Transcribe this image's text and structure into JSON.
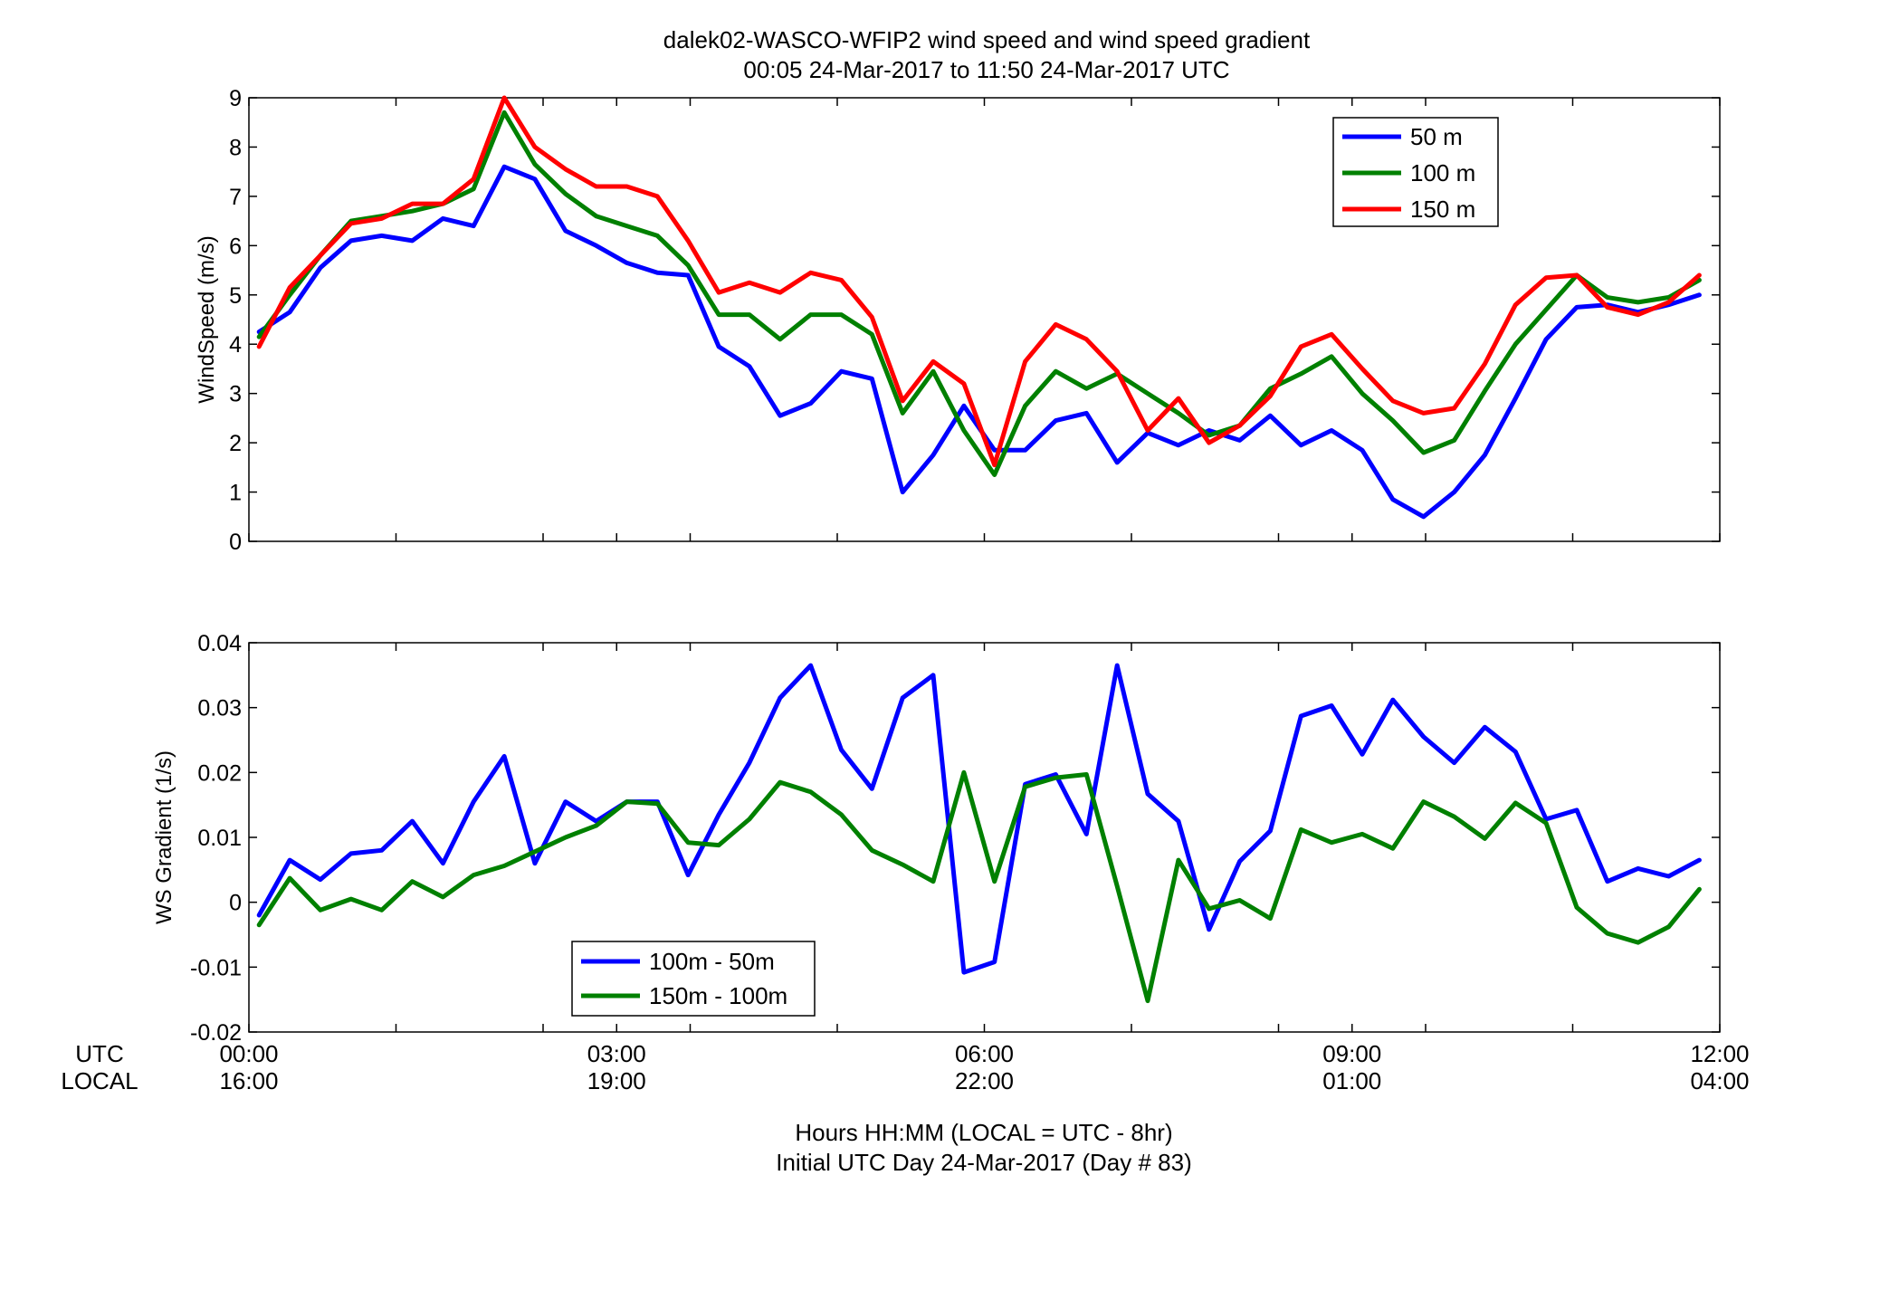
{
  "title": {
    "line1": "dalek02-WASCO-WFIP2  wind speed and wind speed gradient",
    "line2": "00:05 24-Mar-2017 to 11:50 24-Mar-2017  UTC"
  },
  "footer": {
    "line1": "Hours HH:MM  (LOCAL = UTC - 8hr)",
    "line2": "Initial UTC Day 24-Mar-2017 (Day # 83)"
  },
  "time_axis": {
    "row1_label": "UTC",
    "row2_label": "LOCAL",
    "utc_ticks": [
      "00:00",
      "03:00",
      "06:00",
      "09:00",
      "12:00"
    ],
    "local_ticks": [
      "16:00",
      "19:00",
      "22:00",
      "01:00",
      "04:00"
    ],
    "tick_hours": [
      0,
      3,
      6,
      9,
      12
    ],
    "minor_tick_hours": [
      0,
      1.2,
      2.4,
      3,
      3.6,
      4.8,
      6,
      7.2,
      8.4,
      9,
      9.6,
      10.8,
      12
    ]
  },
  "chart_data": [
    {
      "type": "line",
      "ylabel": "WindSpeed (m/s)",
      "xlim": [
        0,
        12
      ],
      "ylim": [
        0,
        9
      ],
      "yticks": [
        0,
        1,
        2,
        3,
        4,
        5,
        6,
        7,
        8,
        9
      ],
      "legend_position": "top-right",
      "x": [
        0.083,
        0.333,
        0.583,
        0.833,
        1.083,
        1.333,
        1.583,
        1.833,
        2.083,
        2.333,
        2.583,
        2.833,
        3.083,
        3.333,
        3.583,
        3.833,
        4.083,
        4.333,
        4.583,
        4.833,
        5.083,
        5.333,
        5.583,
        5.833,
        6.083,
        6.333,
        6.583,
        6.833,
        7.083,
        7.333,
        7.583,
        7.833,
        8.083,
        8.333,
        8.583,
        8.833,
        9.083,
        9.333,
        9.583,
        9.833,
        10.083,
        10.333,
        10.583,
        10.833,
        11.083,
        11.333,
        11.583,
        11.833
      ],
      "series": [
        {
          "name": "50 m",
          "color": "#0000ff",
          "values": [
            4.25,
            4.65,
            5.55,
            6.1,
            6.2,
            6.1,
            6.55,
            6.4,
            7.6,
            7.35,
            6.3,
            6.0,
            5.65,
            5.45,
            5.4,
            3.95,
            3.55,
            2.55,
            2.8,
            3.45,
            3.3,
            1.0,
            1.75,
            2.75,
            1.85,
            1.85,
            2.45,
            2.6,
            1.6,
            2.2,
            1.95,
            2.25,
            2.05,
            2.55,
            1.95,
            2.25,
            1.85,
            0.85,
            0.5,
            1.0,
            1.75,
            2.9,
            4.1,
            4.75,
            4.8,
            4.65,
            4.8,
            5.0
          ]
        },
        {
          "name": "100 m",
          "color": "#008000",
          "values": [
            4.15,
            5.0,
            5.8,
            6.5,
            6.6,
            6.7,
            6.85,
            7.15,
            8.7,
            7.65,
            7.05,
            6.6,
            6.4,
            6.2,
            5.6,
            4.6,
            4.6,
            4.1,
            4.6,
            4.6,
            4.2,
            2.6,
            3.45,
            2.25,
            1.35,
            2.75,
            3.45,
            3.1,
            3.4,
            3.0,
            2.6,
            2.15,
            2.35,
            3.1,
            3.4,
            3.75,
            3.0,
            2.45,
            1.8,
            2.05,
            3.05,
            4.0,
            4.7,
            5.4,
            4.95,
            4.85,
            4.95,
            5.3
          ]
        },
        {
          "name": "150 m",
          "color": "#ff0000",
          "values": [
            3.95,
            5.15,
            5.8,
            6.45,
            6.55,
            6.85,
            6.85,
            7.35,
            9.0,
            8.0,
            7.55,
            7.2,
            7.2,
            7.0,
            6.1,
            5.05,
            5.25,
            5.05,
            5.45,
            5.3,
            4.55,
            2.85,
            3.65,
            3.2,
            1.55,
            3.65,
            4.4,
            4.1,
            3.45,
            2.25,
            2.9,
            2.0,
            2.35,
            2.95,
            3.95,
            4.2,
            3.5,
            2.85,
            2.6,
            2.7,
            3.6,
            4.8,
            5.35,
            5.4,
            4.75,
            4.6,
            4.85,
            5.4
          ]
        }
      ]
    },
    {
      "type": "line",
      "ylabel": "WS Gradient (1/s)",
      "xlim": [
        0,
        12
      ],
      "ylim": [
        -0.02,
        0.04
      ],
      "yticks": [
        -0.02,
        -0.01,
        0,
        0.01,
        0.02,
        0.03,
        0.04
      ],
      "ytick_labels": [
        "-0.02",
        "-0.01",
        "0",
        "0.01",
        "0.02",
        "0.03",
        "0.04"
      ],
      "legend_position": "bottom-left",
      "x": [
        0.083,
        0.333,
        0.583,
        0.833,
        1.083,
        1.333,
        1.583,
        1.833,
        2.083,
        2.333,
        2.583,
        2.833,
        3.083,
        3.333,
        3.583,
        3.833,
        4.083,
        4.333,
        4.583,
        4.833,
        5.083,
        5.333,
        5.583,
        5.833,
        6.083,
        6.333,
        6.583,
        6.833,
        7.083,
        7.333,
        7.583,
        7.833,
        8.083,
        8.333,
        8.583,
        8.833,
        9.083,
        9.333,
        9.583,
        9.833,
        10.083,
        10.333,
        10.583,
        10.833,
        11.083,
        11.333,
        11.583,
        11.833
      ],
      "series": [
        {
          "name": "100m - 50m",
          "color": "#0000ff",
          "values": [
            -0.002,
            0.0065,
            0.0035,
            0.0075,
            0.008,
            0.0125,
            0.006,
            0.0155,
            0.0225,
            0.006,
            0.0155,
            0.0125,
            0.0155,
            0.0155,
            0.0042,
            0.0135,
            0.0215,
            0.0315,
            0.0365,
            0.0235,
            0.0175,
            0.0315,
            0.035,
            -0.0108,
            -0.0092,
            0.0182,
            0.0197,
            0.0105,
            0.0365,
            0.0167,
            0.0125,
            -0.0042,
            0.0063,
            0.011,
            0.0287,
            0.0303,
            0.0228,
            0.0312,
            0.0255,
            0.0215,
            0.027,
            0.0232,
            0.0128,
            0.0142,
            0.0032,
            0.0052,
            0.004,
            0.0065
          ]
        },
        {
          "name": "150m - 100m",
          "color": "#008000",
          "values": [
            -0.0035,
            0.0037,
            -0.0012,
            0.0005,
            -0.0012,
            0.0032,
            0.0008,
            0.0042,
            0.0056,
            0.0078,
            0.01,
            0.0118,
            0.0155,
            0.0152,
            0.0092,
            0.0088,
            0.0128,
            0.0185,
            0.017,
            0.0135,
            0.008,
            0.0058,
            0.0032,
            0.02,
            0.0032,
            0.0178,
            0.0192,
            0.0197,
            0.0025,
            -0.0152,
            0.0065,
            -0.001,
            0.0003,
            -0.0025,
            0.0112,
            0.0092,
            0.0105,
            0.0083,
            0.0155,
            0.0132,
            0.0098,
            0.0153,
            0.0122,
            -0.0008,
            -0.0048,
            -0.0062,
            -0.0038,
            0.002
          ]
        }
      ]
    }
  ]
}
